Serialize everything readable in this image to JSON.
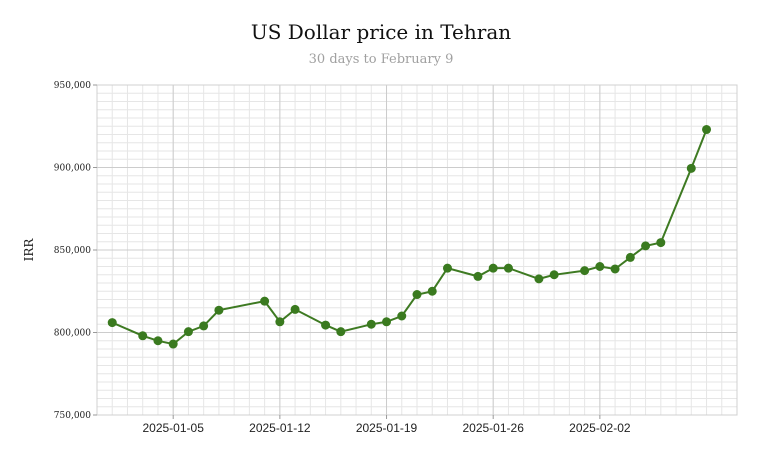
{
  "chart_data": {
    "type": "line",
    "title": "US Dollar price in Tehran",
    "subtitle": "30 days to February 9",
    "ylabel": "IRR",
    "xlabel": "",
    "ylim": [
      750000,
      950000
    ],
    "xlim": [
      "2024-12-31",
      "2025-02-11"
    ],
    "yticks": [
      750000,
      800000,
      850000,
      900000,
      950000
    ],
    "ytick_labels": [
      "750,000",
      "800,000",
      "850,000",
      "900,000",
      "950,000"
    ],
    "xticks": [
      "2025-01-05",
      "2025-01-12",
      "2025-01-19",
      "2025-01-26",
      "2025-02-02"
    ],
    "grid": true,
    "legend": "none",
    "colors": {
      "line": "#3e7a22",
      "marker": "#3a7a1f",
      "grid_major": "#cccccc",
      "grid_minor": "#e6e6e6"
    },
    "series": [
      {
        "x": [
          "2025-01-01",
          "2025-01-03",
          "2025-01-04",
          "2025-01-05",
          "2025-01-06",
          "2025-01-07",
          "2025-01-08",
          "2025-01-09",
          "2025-01-10",
          "2025-01-11",
          "2025-01-12",
          "2025-01-13",
          "2025-01-14",
          "2025-01-15",
          "2025-01-16",
          "2025-01-17",
          "2025-01-18",
          "2025-01-19",
          "2025-01-20",
          "2025-01-21",
          "2025-01-22",
          "2025-01-23",
          "2025-01-24",
          "2025-01-25",
          "2025-01-26",
          "2025-01-27",
          "2025-01-28",
          "2025-01-29",
          "2025-01-30",
          "2025-01-31",
          "2025-02-01",
          "2025-02-02",
          "2025-02-03",
          "2025-02-04",
          "2025-02-05",
          "2025-02-06",
          "2025-02-08",
          "2025-02-09"
        ],
        "values": [
          806000,
          798000,
          795000,
          793000,
          800500,
          804000,
          813500,
          null,
          null,
          819000,
          806500,
          814000,
          null,
          804500,
          800500,
          null,
          805000,
          806500,
          810000,
          823000,
          825000,
          839000,
          null,
          834000,
          839000,
          839000,
          null,
          832500,
          835000,
          null,
          837500,
          840000,
          838500,
          845500,
          852500,
          854500,
          899500,
          923000
        ]
      }
    ]
  }
}
